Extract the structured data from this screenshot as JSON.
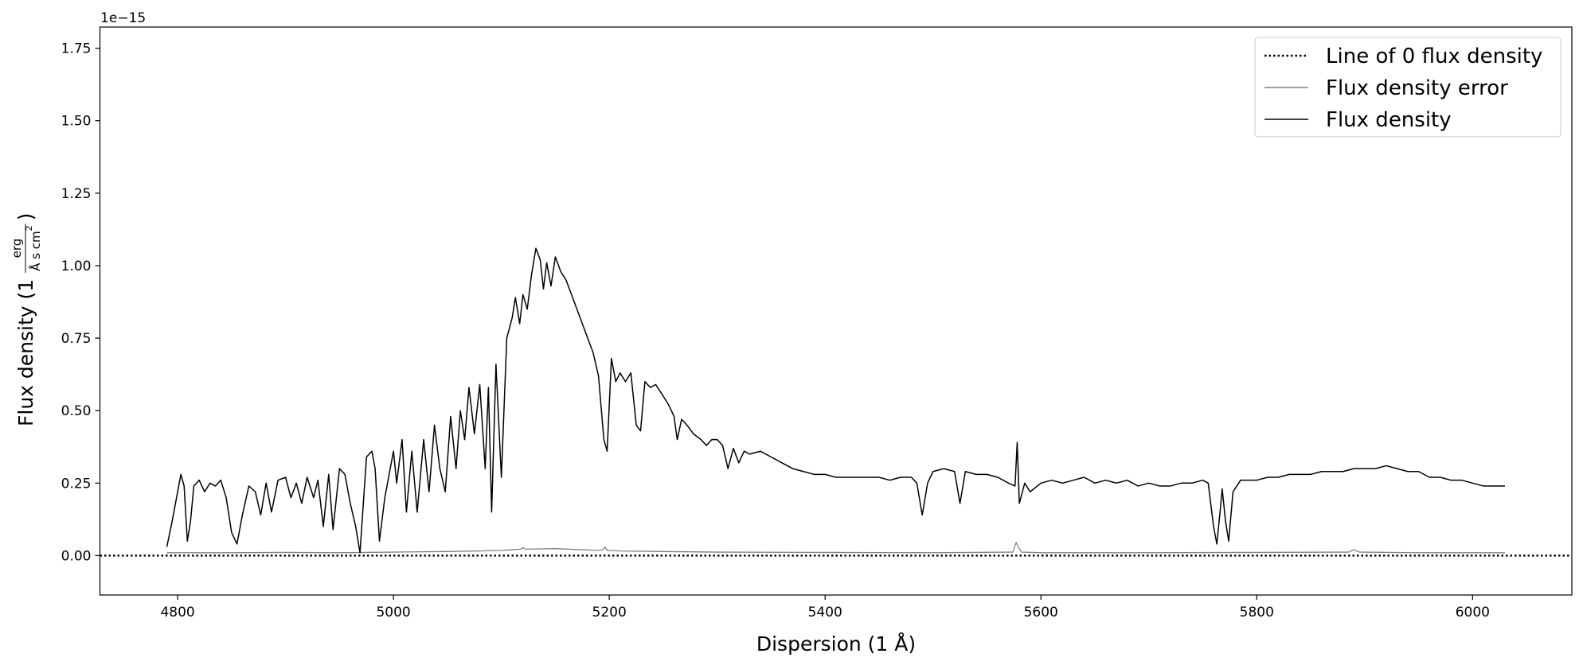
{
  "chart_data": {
    "type": "line",
    "xlabel": "Dispersion (1 Å)",
    "ylabel": {
      "text": "Flux density (1",
      "numerator": "erg",
      "denominator": "Å s cm",
      "exponent": "2",
      "close": ")"
    },
    "y_offset_text": "1e−15",
    "xlim": [
      4728,
      6092
    ],
    "ylim": [
      -0.136,
      1.823
    ],
    "xticks": [
      4800,
      5000,
      5200,
      5400,
      5600,
      5800,
      6000
    ],
    "yticks": [
      {
        "value": 0,
        "label": "0.00"
      },
      0.25,
      {
        "value": 0.5,
        "label": "0.50"
      },
      0.75,
      {
        "value": 1,
        "label": "1.00"
      },
      1.25,
      {
        "value": 1.5,
        "label": "1.50"
      },
      1.75
    ],
    "grid": false,
    "legend": "upper right",
    "series": [
      {
        "name": "Line of 0 flux density",
        "color": "#000000",
        "style": "dotted",
        "x": [
          4728,
          6092
        ],
        "values": [
          0,
          0
        ]
      },
      {
        "name": "Flux density error",
        "color": "#808080",
        "style": "solid",
        "x": [
          4790,
          4850,
          4900,
          4950,
          5000,
          5050,
          5080,
          5100,
          5118,
          5120,
          5122,
          5150,
          5190,
          5194,
          5196,
          5198,
          5210,
          5250,
          5300,
          5400,
          5500,
          5574,
          5577,
          5579,
          5582,
          5600,
          5700,
          5800,
          5885,
          5890,
          5895,
          5950,
          6030
        ],
        "values": [
          0.01,
          0.01,
          0.011,
          0.01,
          0.012,
          0.014,
          0.016,
          0.018,
          0.022,
          0.028,
          0.022,
          0.024,
          0.018,
          0.02,
          0.03,
          0.018,
          0.016,
          0.014,
          0.012,
          0.011,
          0.01,
          0.012,
          0.045,
          0.03,
          0.012,
          0.01,
          0.01,
          0.011,
          0.012,
          0.02,
          0.012,
          0.01,
          0.01
        ]
      },
      {
        "name": "Flux density",
        "color": "#000000",
        "style": "solid",
        "x": [
          4790,
          4795,
          4800,
          4803,
          4806,
          4809,
          4812,
          4815,
          4820,
          4825,
          4830,
          4835,
          4840,
          4845,
          4850,
          4855,
          4860,
          4866,
          4872,
          4877,
          4882,
          4887,
          4893,
          4900,
          4905,
          4910,
          4915,
          4920,
          4926,
          4930,
          4935,
          4940,
          4944,
          4950,
          4955,
          4960,
          4965,
          4969,
          4975,
          4980,
          4983,
          4987,
          4992,
          4997,
          5000,
          5003,
          5008,
          5012,
          5017,
          5022,
          5028,
          5033,
          5038,
          5043,
          5048,
          5053,
          5058,
          5062,
          5066,
          5070,
          5075,
          5080,
          5085,
          5088,
          5091,
          5095,
          5100,
          5105,
          5110,
          5113,
          5117,
          5120,
          5124,
          5128,
          5132,
          5136,
          5139,
          5142,
          5146,
          5150,
          5155,
          5160,
          5165,
          5170,
          5175,
          5180,
          5185,
          5190,
          5195,
          5198,
          5202,
          5206,
          5210,
          5215,
          5220,
          5225,
          5229,
          5233,
          5238,
          5243,
          5250,
          5255,
          5260,
          5263,
          5267,
          5272,
          5278,
          5285,
          5290,
          5295,
          5300,
          5305,
          5310,
          5315,
          5320,
          5325,
          5330,
          5340,
          5350,
          5360,
          5370,
          5380,
          5390,
          5400,
          5410,
          5420,
          5430,
          5440,
          5450,
          5460,
          5470,
          5480,
          5485,
          5490,
          5495,
          5500,
          5510,
          5520,
          5525,
          5530,
          5540,
          5550,
          5560,
          5570,
          5576,
          5578,
          5580,
          5585,
          5590,
          5600,
          5610,
          5620,
          5630,
          5640,
          5650,
          5660,
          5670,
          5680,
          5690,
          5700,
          5710,
          5720,
          5730,
          5740,
          5750,
          5755,
          5760,
          5763,
          5766,
          5768,
          5771,
          5774,
          5778,
          5785,
          5800,
          5810,
          5820,
          5830,
          5840,
          5850,
          5860,
          5870,
          5880,
          5890,
          5900,
          5910,
          5920,
          5930,
          5940,
          5950,
          5960,
          5970,
          5980,
          5990,
          6000,
          6010,
          6020,
          6030
        ],
        "values": [
          0.03,
          0.12,
          0.22,
          0.28,
          0.24,
          0.05,
          0.12,
          0.24,
          0.26,
          0.22,
          0.25,
          0.24,
          0.26,
          0.2,
          0.08,
          0.04,
          0.14,
          0.24,
          0.22,
          0.14,
          0.25,
          0.15,
          0.26,
          0.27,
          0.2,
          0.25,
          0.18,
          0.27,
          0.2,
          0.26,
          0.1,
          0.28,
          0.09,
          0.3,
          0.28,
          0.18,
          0.1,
          0.01,
          0.34,
          0.36,
          0.3,
          0.05,
          0.2,
          0.3,
          0.36,
          0.25,
          0.4,
          0.15,
          0.36,
          0.15,
          0.4,
          0.22,
          0.45,
          0.3,
          0.22,
          0.48,
          0.3,
          0.5,
          0.4,
          0.58,
          0.42,
          0.59,
          0.3,
          0.58,
          0.15,
          0.66,
          0.27,
          0.75,
          0.82,
          0.89,
          0.8,
          0.9,
          0.85,
          0.97,
          1.06,
          1.02,
          0.92,
          1.01,
          0.93,
          1.03,
          0.98,
          0.95,
          0.9,
          0.85,
          0.8,
          0.75,
          0.7,
          0.62,
          0.4,
          0.36,
          0.68,
          0.6,
          0.63,
          0.6,
          0.63,
          0.45,
          0.43,
          0.6,
          0.58,
          0.59,
          0.55,
          0.52,
          0.48,
          0.4,
          0.47,
          0.45,
          0.42,
          0.4,
          0.38,
          0.4,
          0.4,
          0.38,
          0.3,
          0.37,
          0.32,
          0.36,
          0.35,
          0.36,
          0.34,
          0.32,
          0.3,
          0.29,
          0.28,
          0.28,
          0.27,
          0.27,
          0.27,
          0.27,
          0.27,
          0.26,
          0.27,
          0.27,
          0.25,
          0.14,
          0.25,
          0.29,
          0.3,
          0.29,
          0.18,
          0.29,
          0.28,
          0.28,
          0.27,
          0.25,
          0.24,
          0.39,
          0.18,
          0.25,
          0.22,
          0.25,
          0.26,
          0.25,
          0.26,
          0.27,
          0.25,
          0.26,
          0.25,
          0.26,
          0.24,
          0.25,
          0.24,
          0.24,
          0.25,
          0.25,
          0.26,
          0.25,
          0.1,
          0.04,
          0.15,
          0.23,
          0.12,
          0.05,
          0.22,
          0.26,
          0.26,
          0.27,
          0.27,
          0.28,
          0.28,
          0.28,
          0.29,
          0.29,
          0.29,
          0.3,
          0.3,
          0.3,
          0.31,
          0.3,
          0.29,
          0.29,
          0.27,
          0.27,
          0.26,
          0.26,
          0.25,
          0.24,
          0.24,
          0.24
        ]
      }
    ]
  }
}
